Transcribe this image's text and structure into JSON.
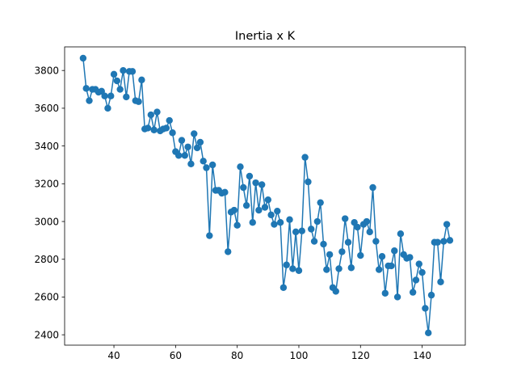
{
  "chart_data": {
    "type": "line",
    "title": "Inertia x K",
    "xlabel": "",
    "ylabel": "",
    "xlim": [
      24,
      154
    ],
    "ylim": [
      2345,
      3925
    ],
    "xticks": [
      40,
      60,
      80,
      100,
      120,
      140
    ],
    "yticks": [
      2400,
      2600,
      2800,
      3000,
      3200,
      3400,
      3600,
      3800
    ],
    "grid": false,
    "color": "#1f77b4",
    "marker": "circle",
    "series": [
      {
        "x": [
          30,
          31,
          32,
          33,
          34,
          35,
          36,
          37,
          38,
          39,
          40,
          41,
          42,
          43,
          44,
          45,
          46,
          47,
          48,
          49,
          50,
          51,
          52,
          53,
          54,
          55,
          56,
          57,
          58,
          59,
          60,
          61,
          62,
          63,
          64,
          65,
          66,
          67,
          68,
          69,
          70,
          71,
          72,
          73,
          74,
          75,
          76,
          77,
          78,
          79,
          80,
          81,
          82,
          83,
          84,
          85,
          86,
          87,
          88,
          89,
          90,
          91,
          92,
          93,
          94,
          95,
          96,
          97,
          98,
          99,
          100,
          101,
          102,
          103,
          104,
          105,
          106,
          107,
          108,
          109,
          110,
          111,
          112,
          113,
          114,
          115,
          116,
          117,
          118,
          119,
          120,
          121,
          122,
          123,
          124,
          125,
          126,
          127,
          128,
          129,
          130,
          131,
          132,
          133,
          134,
          135,
          136,
          137,
          138,
          139,
          140,
          141,
          142,
          143,
          144,
          145,
          146,
          147,
          148,
          149
        ],
        "values": [
          3865,
          3705,
          3640,
          3700,
          3700,
          3685,
          3690,
          3665,
          3600,
          3665,
          3780,
          3745,
          3700,
          3800,
          3660,
          3795,
          3795,
          3640,
          3635,
          3750,
          3490,
          3495,
          3565,
          3485,
          3580,
          3480,
          3490,
          3495,
          3535,
          3470,
          3370,
          3350,
          3430,
          3350,
          3395,
          3305,
          3465,
          3390,
          3420,
          3320,
          3285,
          2925,
          3300,
          3165,
          3165,
          3150,
          3155,
          2840,
          3050,
          3060,
          2980,
          3290,
          3180,
          3085,
          3240,
          2995,
          3205,
          3060,
          3195,
          3075,
          3115,
          3035,
          2985,
          3055,
          2995,
          2650,
          2770,
          3010,
          2750,
          2945,
          2740,
          2950,
          3340,
          3210,
          2960,
          2895,
          3000,
          3100,
          2880,
          2745,
          2825,
          2650,
          2630,
          2750,
          2840,
          3015,
          2890,
          2755,
          2995,
          2970,
          2820,
          2985,
          3000,
          2945,
          3180,
          2895,
          2745,
          2815,
          2620,
          2765,
          2765,
          2845,
          2600,
          2935,
          2825,
          2805,
          2810,
          2625,
          2690,
          2775,
          2730,
          2540,
          2410,
          2610,
          2890,
          2890,
          2680,
          2895,
          2985,
          2900
        ]
      }
    ]
  }
}
